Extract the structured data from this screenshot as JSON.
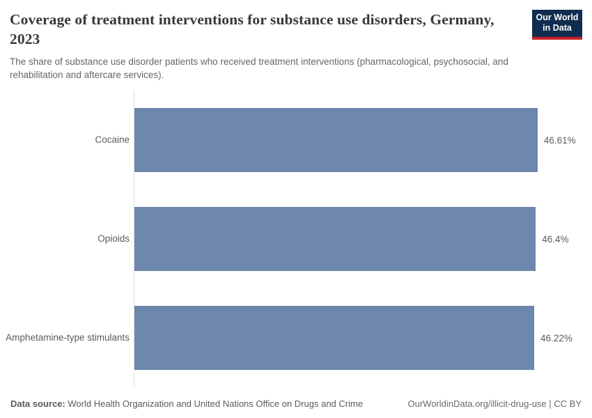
{
  "header": {
    "title": "Coverage of treatment interventions for substance use disorders, Germany, 2023",
    "subtitle": "The share of substance use disorder patients who received treatment interventions (pharmacological, psychosocial, and rehabilitation and aftercare services).",
    "logo": {
      "line1": "Our World",
      "line2": "in Data",
      "bg_color": "#102d50",
      "accent_color": "#cc2028"
    }
  },
  "chart_data": {
    "type": "bar",
    "orientation": "horizontal",
    "title": "Coverage of treatment interventions for substance use disorders, Germany, 2023",
    "categories": [
      "Cocaine",
      "Opioids",
      "Amphetamine-type stimulants"
    ],
    "values": [
      46.61,
      46.4,
      46.22
    ],
    "value_labels": [
      "46.61%",
      "46.4%",
      "46.22%"
    ],
    "unit": "%",
    "xlabel": "",
    "ylabel": "",
    "xlim": [
      0,
      51.4
    ],
    "grid": false,
    "legend": "none",
    "bar_color": "#6d87ad",
    "axis_line_color": "#dadada",
    "label_color": "#5b5b5b"
  },
  "footer": {
    "source_label": "Data source:",
    "source_text": "World Health Organization and United Nations Office on Drugs and Crime",
    "credit": "OurWorldinData.org/illicit-drug-use | CC BY"
  }
}
